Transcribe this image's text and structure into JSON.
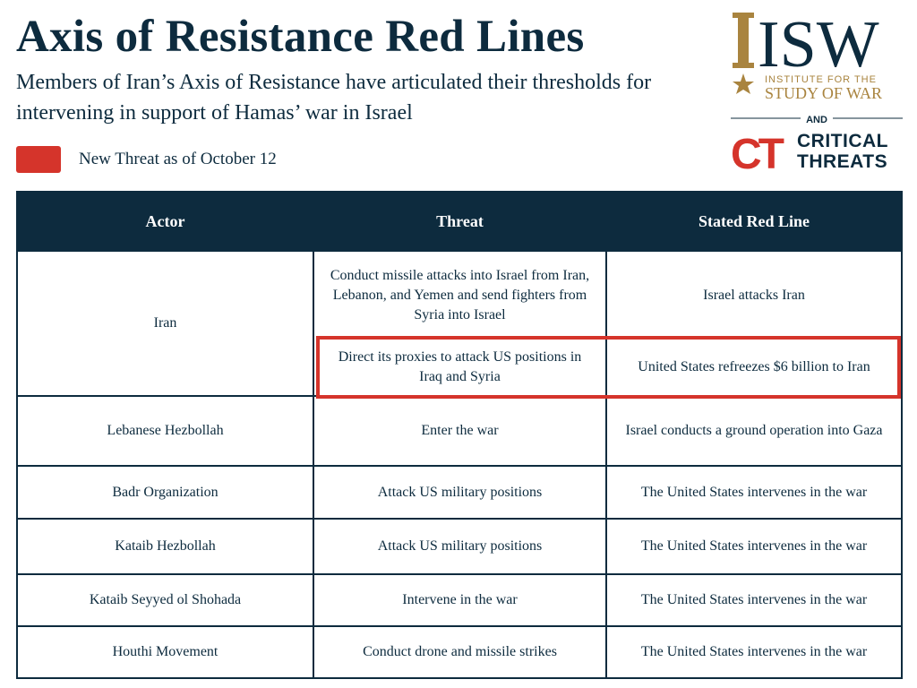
{
  "header": {
    "title": "Axis of Resistance Red Lines",
    "subtitle": "Members of Iran’s Axis of Resistance have articulated their thresholds for intervening in support of Hamas’ war in Israel"
  },
  "legend": {
    "label": "New Threat as of October 12",
    "color": "#d5342b"
  },
  "logos": {
    "isw_letters": "ISW",
    "isw_line1": "INSTITUTE FOR THE",
    "isw_line2": "STUDY OF WAR",
    "and": "AND",
    "ct_letters": "CT",
    "ct_line1": "CRITICAL",
    "ct_line2": "THREATS"
  },
  "colors": {
    "navy": "#0d2b3e",
    "red": "#d5342b",
    "gold": "#a9843f"
  },
  "table": {
    "headers": {
      "actor": "Actor",
      "threat": "Threat",
      "red_line": "Stated Red Line"
    },
    "rows": [
      {
        "actor": "Iran",
        "threat": "Conduct missile attacks into Israel from Iran, Lebanon, and Yemen and send fighters from Syria into Israel",
        "red_line": "Israel attacks Iran"
      },
      {
        "actor": "",
        "threat": "Direct its proxies to attack US positions in Iraq and Syria",
        "red_line": "United States refreezes $6 billion to Iran",
        "new_threat": true
      },
      {
        "actor": "Lebanese Hezbollah",
        "threat": "Enter the war",
        "red_line": "Israel conducts a ground operation into Gaza"
      },
      {
        "actor": "Badr Organization",
        "threat": "Attack US military positions",
        "red_line": "The United States intervenes in the war"
      },
      {
        "actor": "Kataib Hezbollah",
        "threat": "Attack US military positions",
        "red_line": "The United States intervenes in the war"
      },
      {
        "actor": "Kataib Seyyed ol Shohada",
        "threat": "Intervene in the war",
        "red_line": "The United States intervenes in the war"
      },
      {
        "actor": "Houthi Movement",
        "threat": "Conduct drone and missile strikes",
        "red_line": "The United States intervenes in the war"
      }
    ]
  }
}
